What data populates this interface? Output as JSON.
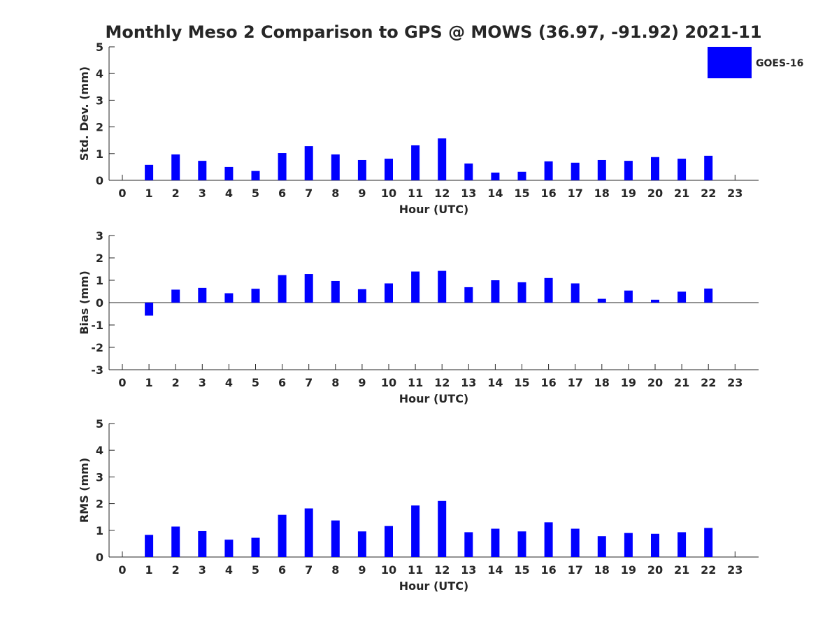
{
  "title": "Monthly Meso 2 Comparison to GPS @ MOWS (36.97, -91.92) 2021-11",
  "legend": {
    "label": "GOES-16",
    "color": "#0000ff",
    "placement": "top-right"
  },
  "chart_data": [
    {
      "type": "bar",
      "ylabel": "Std. Dev. (mm)",
      "xlabel": "Hour (UTC)",
      "ylim": [
        0,
        5
      ],
      "yticks": [
        0,
        1,
        2,
        3,
        4,
        5
      ],
      "x": [
        0,
        1,
        2,
        3,
        4,
        5,
        6,
        7,
        8,
        9,
        10,
        11,
        12,
        13,
        14,
        15,
        16,
        17,
        18,
        19,
        20,
        21,
        22,
        23
      ],
      "values": [
        null,
        0.58,
        0.97,
        0.73,
        0.5,
        0.35,
        1.02,
        1.28,
        0.97,
        0.76,
        0.81,
        1.31,
        1.57,
        0.63,
        0.29,
        0.32,
        0.71,
        0.66,
        0.76,
        0.73,
        0.87,
        0.81,
        0.92,
        null
      ],
      "bar_color": "#0000ff"
    },
    {
      "type": "bar",
      "ylabel": "Bias (mm)",
      "xlabel": "Hour (UTC)",
      "ylim": [
        -3,
        3
      ],
      "yticks": [
        -3,
        -2,
        -1,
        0,
        1,
        2,
        3
      ],
      "x": [
        0,
        1,
        2,
        3,
        4,
        5,
        6,
        7,
        8,
        9,
        10,
        11,
        12,
        13,
        14,
        15,
        16,
        17,
        18,
        19,
        20,
        21,
        22,
        23
      ],
      "values": [
        null,
        -0.58,
        0.58,
        0.66,
        0.42,
        0.62,
        1.23,
        1.28,
        0.97,
        0.6,
        0.86,
        1.39,
        1.42,
        0.69,
        1.0,
        0.91,
        1.1,
        0.86,
        0.17,
        0.54,
        0.13,
        0.49,
        0.63,
        null
      ],
      "bar_color": "#0000ff"
    },
    {
      "type": "bar",
      "ylabel": "RMS (mm)",
      "xlabel": "Hour (UTC)",
      "ylim": [
        0,
        5
      ],
      "yticks": [
        0,
        1,
        2,
        3,
        4,
        5
      ],
      "x": [
        0,
        1,
        2,
        3,
        4,
        5,
        6,
        7,
        8,
        9,
        10,
        11,
        12,
        13,
        14,
        15,
        16,
        17,
        18,
        19,
        20,
        21,
        22,
        23
      ],
      "values": [
        null,
        0.83,
        1.14,
        0.97,
        0.65,
        0.72,
        1.58,
        1.82,
        1.37,
        0.96,
        1.16,
        1.93,
        2.1,
        0.93,
        1.06,
        0.96,
        1.3,
        1.06,
        0.78,
        0.9,
        0.87,
        0.93,
        1.09,
        null
      ],
      "bar_color": "#0000ff"
    }
  ]
}
